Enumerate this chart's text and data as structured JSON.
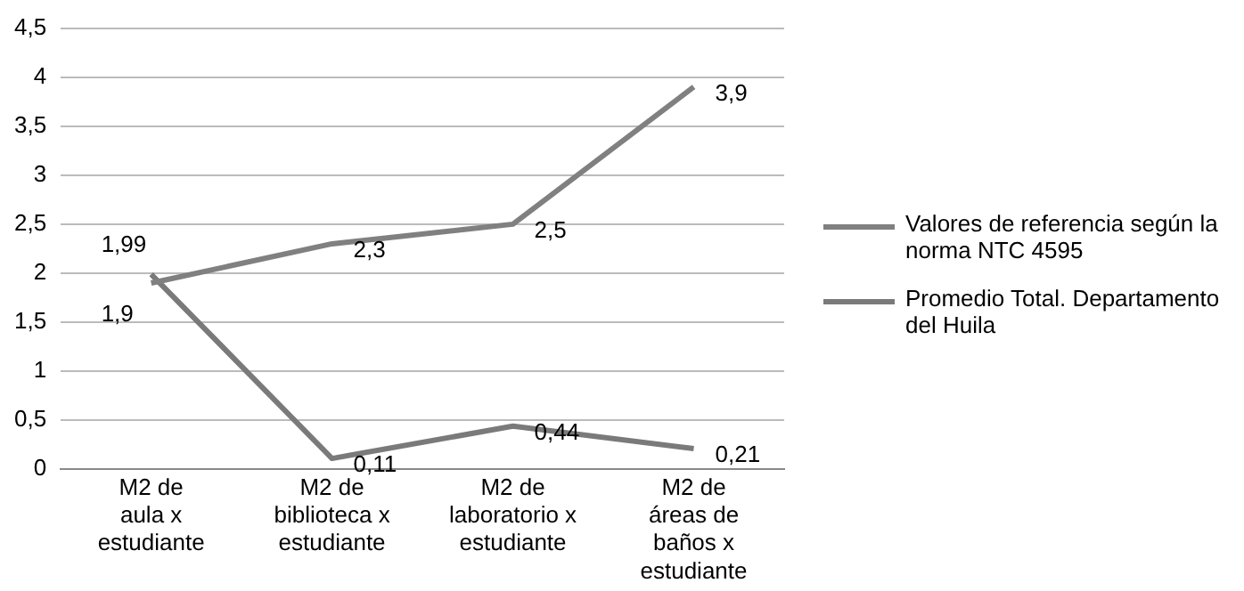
{
  "chart_data": {
    "type": "line",
    "categories": [
      "M2 de aula x estudiante",
      "M2 de biblioteca x estudiante",
      "M2 de laboratorio x estudiante",
      "M2 de áreas de baños x estudiante"
    ],
    "series": [
      {
        "name": "Valores de referencia según la norma NTC 4595",
        "color": "#808080",
        "values": [
          1.9,
          2.3,
          2.5,
          3.9
        ],
        "value_labels": [
          "1,9",
          "2,3",
          "2,5",
          "3,9"
        ]
      },
      {
        "name": "Promedio Total. Departamento del Huila",
        "color": "#7a7a7a",
        "values": [
          1.99,
          0.11,
          0.44,
          0.21
        ],
        "value_labels": [
          "1,99",
          "0,11",
          "0,44",
          "0,21"
        ]
      }
    ],
    "ylim": [
      0,
      4.5
    ],
    "yticks": [
      0,
      {
        "value": 0.5,
        "label": "0,5"
      },
      1,
      {
        "value": 1.5,
        "label": "1,5"
      },
      2,
      {
        "value": 2.5,
        "label": "2,5"
      },
      3,
      {
        "value": 3.5,
        "label": "3,5"
      },
      4,
      {
        "value": 4.5,
        "label": "4,5"
      }
    ],
    "grid": "y",
    "legend": "right",
    "marker": "none",
    "line_style": "solid"
  }
}
